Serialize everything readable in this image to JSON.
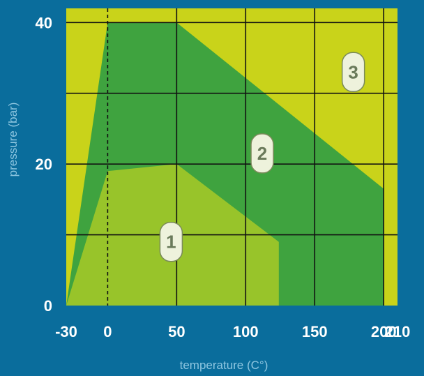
{
  "colors": {
    "background": "#0a6d9c",
    "zone1": "#98c42a",
    "zone2": "#3fa33f",
    "zone3": "#c9d31a",
    "grid": "#111111",
    "label_fill": "#eef2dc",
    "label_stroke": "#7a8a5a"
  },
  "chart_data": {
    "type": "area",
    "title": "",
    "xlabel": "temperature (C°)",
    "ylabel": "pressure (bar)",
    "x_ticks": [
      "-30",
      "0",
      "50",
      "100",
      "150",
      "200",
      "210"
    ],
    "x_tick_values": [
      -30,
      0,
      50,
      100,
      150,
      200,
      210
    ],
    "y_ticks": [
      "0",
      "20",
      "40"
    ],
    "y_tick_values": [
      0,
      20,
      40
    ],
    "xlim": [
      -30,
      210
    ],
    "ylim": [
      0,
      42
    ],
    "grid": true,
    "reference_line": {
      "x": 0,
      "style": "dashed"
    },
    "regions": [
      {
        "name": "3",
        "points": [
          [
            -30,
            0
          ],
          [
            -30,
            42
          ],
          [
            210,
            42
          ],
          [
            210,
            0
          ]
        ]
      },
      {
        "name": "2",
        "points": [
          [
            -30,
            0
          ],
          [
            0,
            40
          ],
          [
            50,
            40
          ],
          [
            200,
            16.5
          ],
          [
            200,
            0
          ]
        ]
      },
      {
        "name": "1",
        "points": [
          [
            -30,
            0
          ],
          [
            0,
            19
          ],
          [
            50,
            20
          ],
          [
            124,
            9
          ],
          [
            124,
            0
          ]
        ]
      }
    ],
    "zone_labels": [
      {
        "text": "1",
        "x": 46,
        "y": 9
      },
      {
        "text": "2",
        "x": 112,
        "y": 21.5
      },
      {
        "text": "3",
        "x": 178,
        "y": 33
      }
    ]
  }
}
